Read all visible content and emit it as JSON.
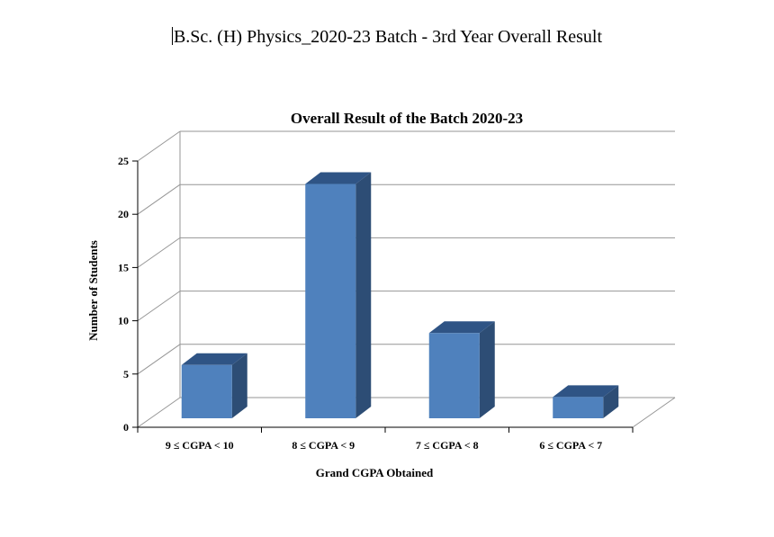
{
  "document": {
    "title": "B.Sc. (H) Physics_2020-23 Batch - 3rd Year Overall Result"
  },
  "chart_data": {
    "type": "bar",
    "title": "Overall Result of the Batch 2020-23",
    "xlabel": "Grand CGPA Obtained",
    "ylabel": "Number of Students",
    "categories": [
      "9 ≤ CGPA < 10",
      "8 ≤ CGPA < 9",
      "7 ≤ CGPA < 8",
      "6 ≤ CGPA < 7"
    ],
    "values": [
      5,
      22,
      8,
      2
    ],
    "ylim": [
      0,
      25
    ],
    "yticks": [
      "0",
      "5",
      "10",
      "15",
      "20",
      "25"
    ],
    "grid": true,
    "three_d": true,
    "colors": {
      "bar_front": "#4F81BD",
      "bar_side": "#2D4D75",
      "bar_top": "#2F5485",
      "grid": "#969696"
    }
  }
}
